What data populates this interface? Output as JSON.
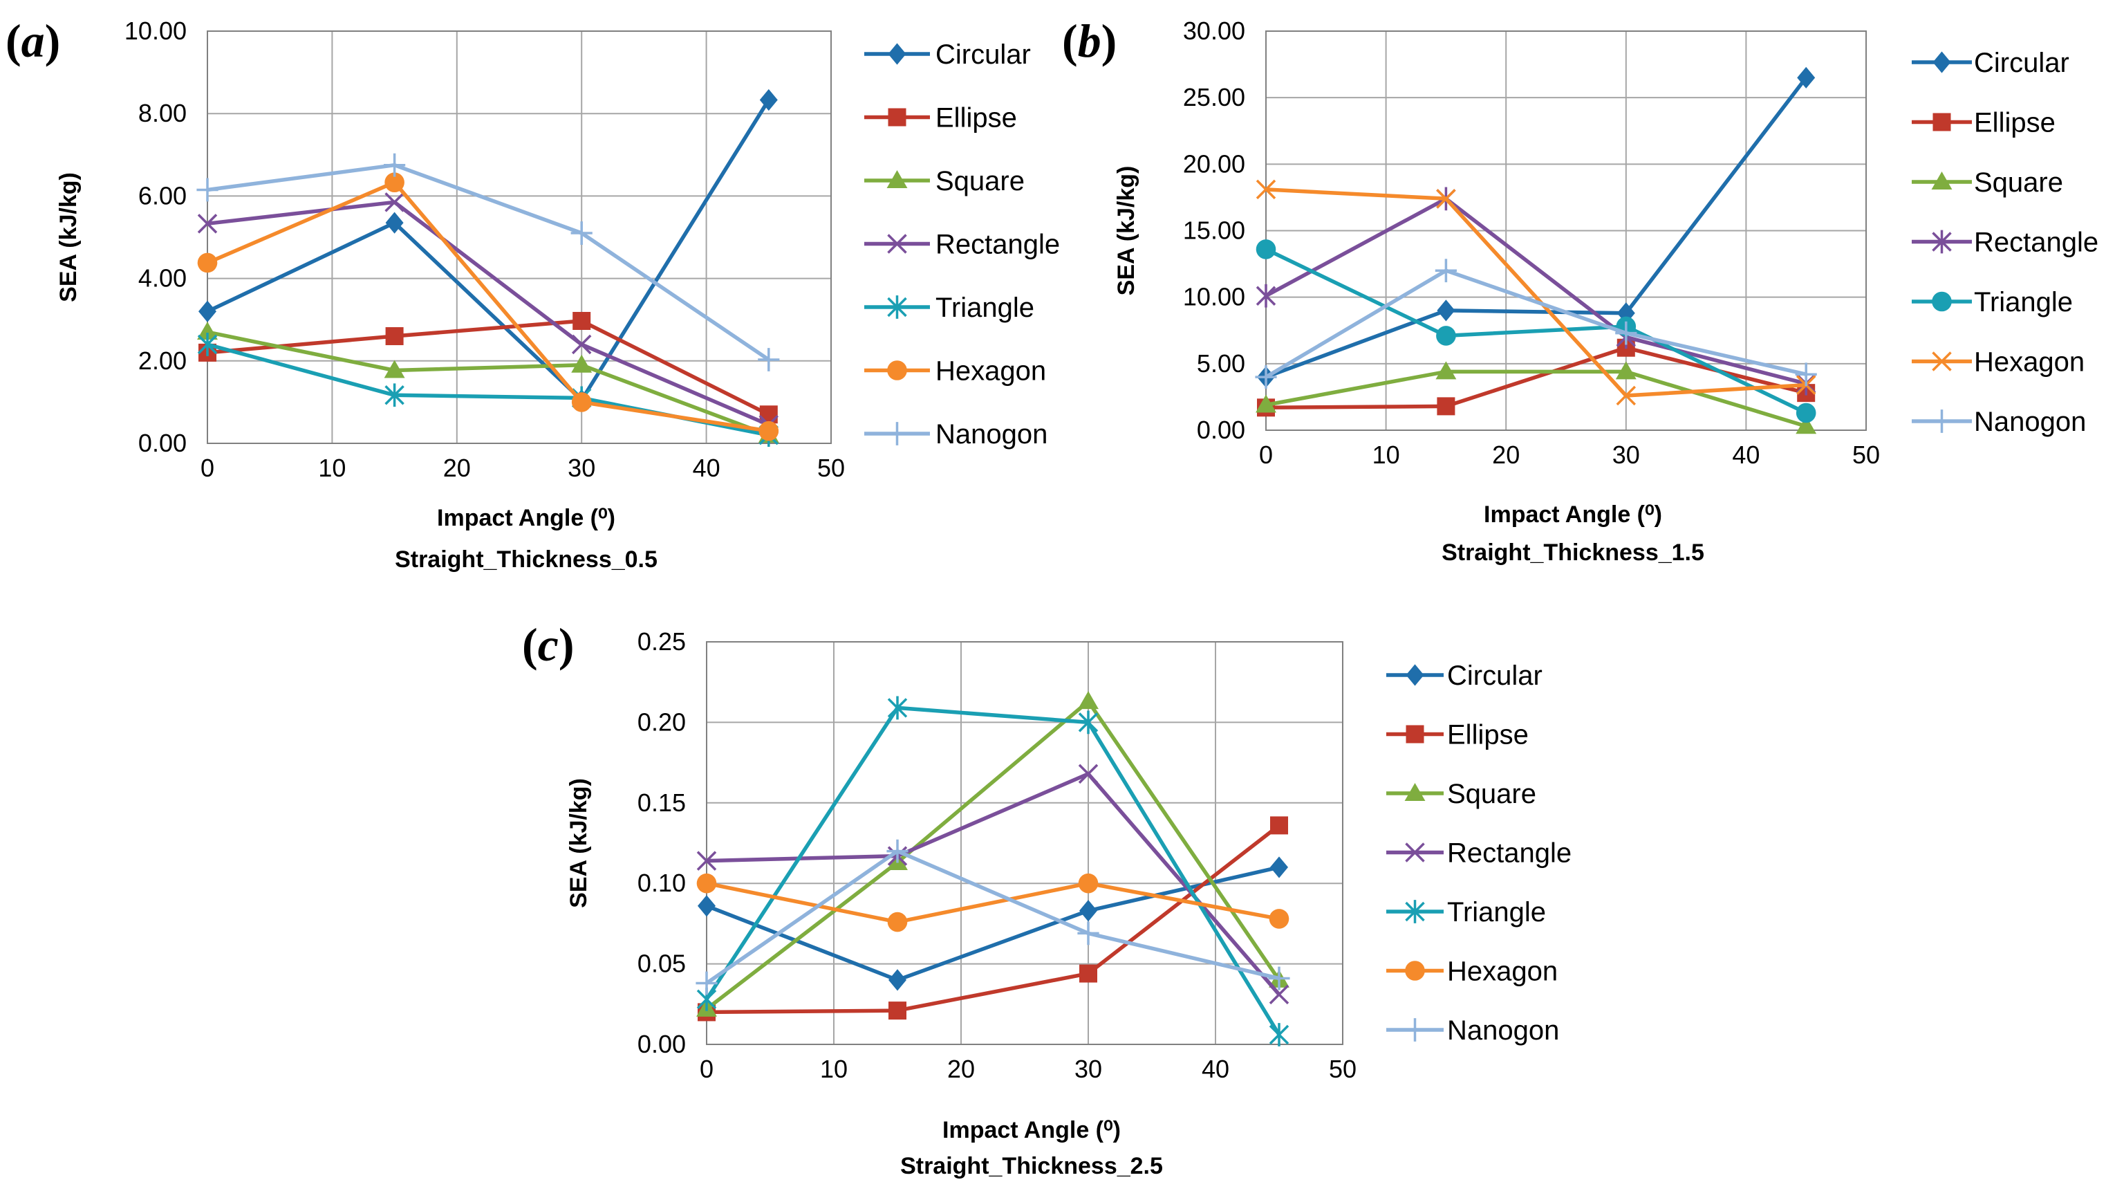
{
  "colors": {
    "Circular": "#1f6eab",
    "Ellipse": "#c0392b",
    "Square": "#7fad3f",
    "Rectangle": "#7a4f9a",
    "Triangle": "#1a9fb3",
    "Hexagon": "#f58a2b",
    "Nanogon": "#8fb3dc"
  },
  "chart_data": [
    {
      "type": "line",
      "panel_label": "a",
      "title": "",
      "ylabel": "SEA (kJ/kg)",
      "xlabel": "Impact Angle (⁰)",
      "subtitle": "Straight_Thickness_0.5",
      "xlim": [
        0,
        50
      ],
      "ylim": [
        0,
        10
      ],
      "x_ticks": [
        "0",
        "10",
        "20",
        "30",
        "40",
        "50"
      ],
      "y_ticks": [
        "0.00",
        "2.00",
        "4.00",
        "6.00",
        "8.00",
        "10.00"
      ],
      "x": [
        0,
        15,
        30,
        45
      ],
      "legend_order": [
        "Circular",
        "Ellipse",
        "Square",
        "Rectangle",
        "Triangle",
        "Hexagon",
        "Nanogon"
      ],
      "series": [
        {
          "name": "Circular",
          "marker": "diamond",
          "values": [
            3.2,
            5.35,
            1.05,
            8.33
          ]
        },
        {
          "name": "Ellipse",
          "marker": "square",
          "values": [
            2.2,
            2.6,
            2.97,
            0.7
          ]
        },
        {
          "name": "Square",
          "marker": "triangle",
          "values": [
            2.7,
            1.77,
            1.9,
            0.2
          ]
        },
        {
          "name": "Rectangle",
          "marker": "x",
          "values": [
            5.33,
            5.85,
            2.4,
            0.45
          ]
        },
        {
          "name": "Triangle",
          "marker": "star",
          "values": [
            2.4,
            1.17,
            1.1,
            0.2
          ]
        },
        {
          "name": "Hexagon",
          "marker": "circle",
          "values": [
            4.38,
            6.33,
            1.0,
            0.3
          ]
        },
        {
          "name": "Nanogon",
          "marker": "plus",
          "values": [
            6.15,
            6.75,
            5.1,
            2.03
          ]
        }
      ]
    },
    {
      "type": "line",
      "panel_label": "b",
      "title": "",
      "ylabel": "SEA (kJ/kg)",
      "xlabel": "Impact Angle (⁰)",
      "subtitle": "Straight_Thickness_1.5",
      "xlim": [
        0,
        50
      ],
      "ylim": [
        0,
        30
      ],
      "x_ticks": [
        "0",
        "10",
        "20",
        "30",
        "40",
        "50"
      ],
      "y_ticks": [
        "0.00",
        "5.00",
        "10.00",
        "15.00",
        "20.00",
        "25.00",
        "30.00"
      ],
      "x": [
        0,
        15,
        30,
        45
      ],
      "legend_order": [
        "Circular",
        "Ellipse",
        "Square",
        "Rectangle",
        "Triangle",
        "Hexagon",
        "Nanogon"
      ],
      "series": [
        {
          "name": "Circular",
          "marker": "diamond",
          "values": [
            4.0,
            9.0,
            8.8,
            26.5
          ]
        },
        {
          "name": "Ellipse",
          "marker": "square",
          "values": [
            1.7,
            1.8,
            6.2,
            2.8
          ]
        },
        {
          "name": "Square",
          "marker": "triangle",
          "values": [
            1.9,
            4.4,
            4.4,
            0.3
          ]
        },
        {
          "name": "Rectangle",
          "marker": "star",
          "values": [
            10.1,
            17.4,
            7.0,
            3.5
          ]
        },
        {
          "name": "Triangle",
          "marker": "circle",
          "values": [
            13.6,
            7.1,
            7.8,
            1.3
          ]
        },
        {
          "name": "Hexagon",
          "marker": "x",
          "values": [
            18.1,
            17.4,
            2.6,
            3.4
          ]
        },
        {
          "name": "Nanogon",
          "marker": "plus",
          "values": [
            4.0,
            12.0,
            7.3,
            4.2
          ]
        }
      ]
    },
    {
      "type": "line",
      "panel_label": "c",
      "title": "",
      "ylabel": "SEA (kJ/kg)",
      "xlabel": "Impact Angle (⁰)",
      "subtitle": "Straight_Thickness_2.5",
      "xlim": [
        0,
        50
      ],
      "ylim": [
        0,
        0.25
      ],
      "x_ticks": [
        "0",
        "10",
        "20",
        "30",
        "40",
        "50"
      ],
      "y_ticks": [
        "0.00",
        "0.05",
        "0.10",
        "0.15",
        "0.20",
        "0.25"
      ],
      "x": [
        0,
        15,
        30,
        45
      ],
      "legend_order": [
        "Circular",
        "Ellipse",
        "Square",
        "Rectangle",
        "Triangle",
        "Hexagon",
        "Nanogon"
      ],
      "series": [
        {
          "name": "Circular",
          "marker": "diamond",
          "values": [
            0.086,
            0.04,
            0.083,
            0.11
          ]
        },
        {
          "name": "Ellipse",
          "marker": "square",
          "values": [
            0.02,
            0.021,
            0.044,
            0.136
          ]
        },
        {
          "name": "Square",
          "marker": "triangle",
          "values": [
            0.022,
            0.113,
            0.213,
            0.04
          ]
        },
        {
          "name": "Rectangle",
          "marker": "x",
          "values": [
            0.114,
            0.117,
            0.168,
            0.031
          ]
        },
        {
          "name": "Triangle",
          "marker": "star",
          "values": [
            0.028,
            0.209,
            0.2,
            0.006
          ]
        },
        {
          "name": "Hexagon",
          "marker": "circle",
          "values": [
            0.1,
            0.076,
            0.1,
            0.078
          ]
        },
        {
          "name": "Nanogon",
          "marker": "plus",
          "values": [
            0.038,
            0.12,
            0.069,
            0.041
          ]
        }
      ]
    }
  ]
}
